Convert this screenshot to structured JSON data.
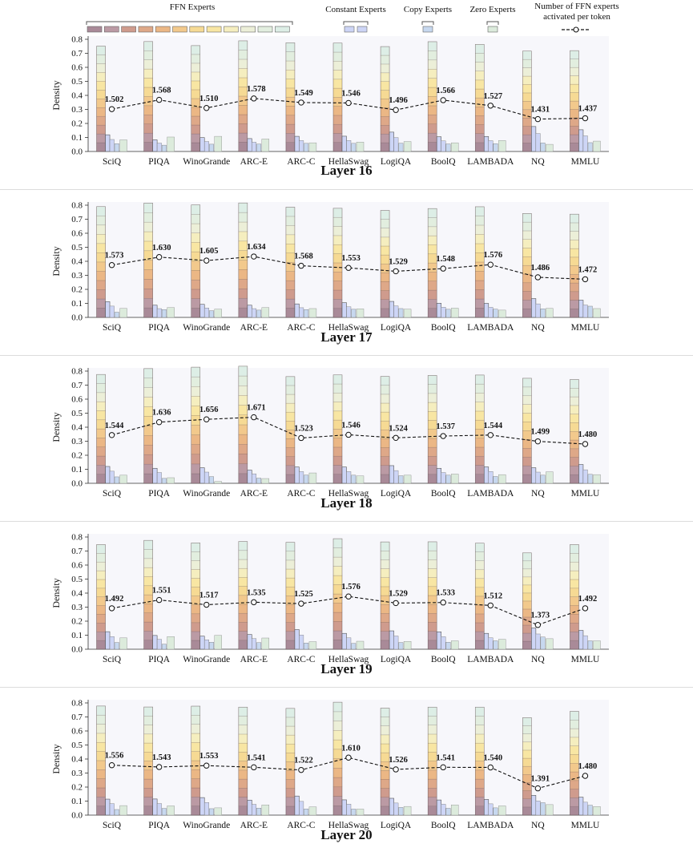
{
  "legend": {
    "ffn": "FFN Experts",
    "constant": "Constant Experts",
    "copy": "Copy Experts",
    "zero": "Zero Experts",
    "activated_line1": "Number of FFN experts",
    "activated_line2": "activated per token"
  },
  "colors": {
    "ffn_ramp": [
      "#a98a98",
      "#bb9aa4",
      "#cf9b8d",
      "#dea888",
      "#ebb785",
      "#f2c98c",
      "#f6da94",
      "#f8e6a3",
      "#f5eebf",
      "#ecefd8",
      "#e2eedf",
      "#ddeee6"
    ],
    "constant": "#cdd5f6",
    "copy": "#c7d8ef",
    "zero": "#dcebdc",
    "panel_bg": "#f7f7fb",
    "line": "#111111"
  },
  "chart_data": [
    {
      "type": "bar",
      "title": "Layer 16",
      "ylabel": "Density",
      "ylim": [
        0,
        0.8
      ],
      "yticks": [
        "0.0",
        "0.1",
        "0.2",
        "0.3",
        "0.4",
        "0.5",
        "0.6",
        "0.7",
        "0.8"
      ],
      "categories": [
        "SciQ",
        "PIQA",
        "WinoGrande",
        "ARC-E",
        "ARC-C",
        "HellaSwag",
        "LogiQA",
        "BoolQ",
        "LAMBADA",
        "NQ",
        "MMLU"
      ],
      "series": [
        {
          "name": "FFN Experts",
          "values": [
            0.751,
            0.784,
            0.755,
            0.789,
            0.775,
            0.773,
            0.748,
            0.783,
            0.764,
            0.716,
            0.719
          ]
        },
        {
          "name": "Constant Experts",
          "values": [
            0.119,
            0.083,
            0.099,
            0.092,
            0.108,
            0.109,
            0.138,
            0.105,
            0.107,
            0.178,
            0.155
          ]
        },
        {
          "name": "Copy Experts",
          "values": [
            0.056,
            0.045,
            0.052,
            0.053,
            0.058,
            0.058,
            0.059,
            0.054,
            0.056,
            0.061,
            0.063
          ]
        },
        {
          "name": "Zero Experts",
          "values": [
            0.083,
            0.103,
            0.108,
            0.089,
            0.062,
            0.067,
            0.071,
            0.062,
            0.078,
            0.051,
            0.074
          ]
        },
        {
          "name": "Number of FFN experts activated per token",
          "values": [
            1.502,
            1.568,
            1.51,
            1.578,
            1.549,
            1.546,
            1.496,
            1.566,
            1.527,
            1.431,
            1.437
          ]
        }
      ],
      "labels": [
        "1.502",
        "1.568",
        "1.510",
        "1.578",
        "1.549",
        "1.546",
        "1.496",
        "1.566",
        "1.527",
        "1.431",
        "1.437"
      ]
    },
    {
      "type": "bar",
      "title": "Layer 17",
      "ylabel": "Density",
      "ylim": [
        0,
        0.8
      ],
      "yticks": [
        "0.0",
        "0.1",
        "0.2",
        "0.3",
        "0.4",
        "0.5",
        "0.6",
        "0.7",
        "0.8"
      ],
      "categories": [
        "SciQ",
        "PIQA",
        "WinoGrande",
        "ARC-E",
        "ARC-C",
        "HellaSwag",
        "LogiQA",
        "BoolQ",
        "LAMBADA",
        "NQ",
        "MMLU"
      ],
      "series": [
        {
          "name": "FFN Experts",
          "values": [
            0.79,
            0.815,
            0.802,
            0.816,
            0.786,
            0.778,
            0.763,
            0.776,
            0.789,
            0.741,
            0.736
          ]
        },
        {
          "name": "Constant Experts",
          "values": [
            0.112,
            0.087,
            0.093,
            0.087,
            0.096,
            0.105,
            0.114,
            0.101,
            0.1,
            0.134,
            0.123
          ]
        },
        {
          "name": "Copy Experts",
          "values": [
            0.037,
            0.056,
            0.048,
            0.052,
            0.056,
            0.058,
            0.063,
            0.058,
            0.059,
            0.061,
            0.08
          ]
        },
        {
          "name": "Zero Experts",
          "values": [
            0.064,
            0.07,
            0.059,
            0.07,
            0.063,
            0.061,
            0.059,
            0.066,
            0.052,
            0.064,
            0.063
          ]
        },
        {
          "name": "Number of FFN experts activated per token",
          "values": [
            1.573,
            1.63,
            1.605,
            1.634,
            1.568,
            1.553,
            1.529,
            1.548,
            1.576,
            1.486,
            1.472
          ]
        }
      ],
      "labels": [
        "1.573",
        "1.630",
        "1.605",
        "1.634",
        "1.568",
        "1.553",
        "1.529",
        "1.548",
        "1.576",
        "1.486",
        "1.472"
      ]
    },
    {
      "type": "bar",
      "title": "Layer 18",
      "ylabel": "Density",
      "ylim": [
        0,
        0.8
      ],
      "yticks": [
        "0.0",
        "0.1",
        "0.2",
        "0.3",
        "0.4",
        "0.5",
        "0.6",
        "0.7",
        "0.8"
      ],
      "categories": [
        "SciQ",
        "PIQA",
        "WinoGrande",
        "ARC-E",
        "ARC-C",
        "HellaSwag",
        "LogiQA",
        "BoolQ",
        "LAMBADA",
        "NQ",
        "MMLU"
      ],
      "series": [
        {
          "name": "FFN Experts",
          "values": [
            0.776,
            0.818,
            0.828,
            0.835,
            0.761,
            0.773,
            0.762,
            0.769,
            0.772,
            0.749,
            0.74
          ]
        },
        {
          "name": "Constant Experts",
          "values": [
            0.12,
            0.107,
            0.111,
            0.094,
            0.116,
            0.116,
            0.126,
            0.107,
            0.117,
            0.111,
            0.134
          ]
        },
        {
          "name": "Copy Experts",
          "values": [
            0.046,
            0.035,
            0.048,
            0.037,
            0.059,
            0.058,
            0.054,
            0.058,
            0.049,
            0.058,
            0.064
          ]
        },
        {
          "name": "Zero Experts",
          "values": [
            0.058,
            0.04,
            0.013,
            0.034,
            0.074,
            0.053,
            0.058,
            0.066,
            0.062,
            0.082,
            0.062
          ]
        },
        {
          "name": "Number of FFN experts activated per token",
          "values": [
            1.544,
            1.636,
            1.656,
            1.671,
            1.523,
            1.546,
            1.524,
            1.537,
            1.544,
            1.499,
            1.48
          ]
        }
      ],
      "labels": [
        "1.544",
        "1.636",
        "1.656",
        "1.671",
        "1.523",
        "1.546",
        "1.524",
        "1.537",
        "1.544",
        "1.499",
        "1.480"
      ]
    },
    {
      "type": "bar",
      "title": "Layer 19",
      "ylabel": "Density",
      "ylim": [
        0,
        0.8
      ],
      "yticks": [
        "0.0",
        "0.1",
        "0.2",
        "0.3",
        "0.4",
        "0.5",
        "0.6",
        "0.7",
        "0.8"
      ],
      "categories": [
        "SciQ",
        "PIQA",
        "WinoGrande",
        "ARC-E",
        "ARC-C",
        "HellaSwag",
        "LogiQA",
        "BoolQ",
        "LAMBADA",
        "NQ",
        "MMLU"
      ],
      "series": [
        {
          "name": "FFN Experts",
          "values": [
            0.746,
            0.776,
            0.758,
            0.768,
            0.762,
            0.788,
            0.765,
            0.766,
            0.756,
            0.687,
            0.746
          ]
        },
        {
          "name": "Constant Experts",
          "values": [
            0.125,
            0.098,
            0.093,
            0.105,
            0.14,
            0.113,
            0.131,
            0.124,
            0.113,
            0.151,
            0.134
          ]
        },
        {
          "name": "Copy Experts",
          "values": [
            0.048,
            0.036,
            0.05,
            0.047,
            0.044,
            0.042,
            0.048,
            0.05,
            0.06,
            0.087,
            0.06
          ]
        },
        {
          "name": "Zero Experts",
          "values": [
            0.081,
            0.09,
            0.099,
            0.08,
            0.054,
            0.057,
            0.056,
            0.06,
            0.071,
            0.075,
            0.06
          ]
        },
        {
          "name": "Number of FFN experts activated per token",
          "values": [
            1.492,
            1.551,
            1.517,
            1.535,
            1.525,
            1.576,
            1.529,
            1.533,
            1.512,
            1.373,
            1.492
          ]
        }
      ],
      "labels": [
        "1.492",
        "1.551",
        "1.517",
        "1.535",
        "1.525",
        "1.576",
        "1.529",
        "1.533",
        "1.512",
        "1.373",
        "1.492"
      ]
    },
    {
      "type": "bar",
      "title": "Layer 20",
      "ylabel": "Density",
      "ylim": [
        0,
        0.8
      ],
      "yticks": [
        "0.0",
        "0.1",
        "0.2",
        "0.3",
        "0.4",
        "0.5",
        "0.6",
        "0.7",
        "0.8"
      ],
      "categories": [
        "SciQ",
        "PIQA",
        "WinoGrande",
        "ARC-E",
        "ARC-C",
        "HellaSwag",
        "LogiQA",
        "BoolQ",
        "LAMBADA",
        "NQ",
        "MMLU"
      ],
      "series": [
        {
          "name": "FFN Experts",
          "values": [
            0.778,
            0.771,
            0.777,
            0.77,
            0.761,
            0.805,
            0.763,
            0.77,
            0.77,
            0.695,
            0.74
          ]
        },
        {
          "name": "Constant Experts",
          "values": [
            0.114,
            0.115,
            0.125,
            0.107,
            0.136,
            0.109,
            0.12,
            0.108,
            0.112,
            0.141,
            0.128
          ]
        },
        {
          "name": "Copy Experts",
          "values": [
            0.04,
            0.048,
            0.046,
            0.05,
            0.044,
            0.043,
            0.055,
            0.049,
            0.052,
            0.089,
            0.071
          ]
        },
        {
          "name": "Zero Experts",
          "values": [
            0.068,
            0.066,
            0.052,
            0.073,
            0.059,
            0.043,
            0.062,
            0.073,
            0.066,
            0.075,
            0.061
          ]
        },
        {
          "name": "Number of FFN experts activated per token",
          "values": [
            1.556,
            1.543,
            1.553,
            1.541,
            1.522,
            1.61,
            1.526,
            1.541,
            1.54,
            1.391,
            1.48
          ]
        }
      ],
      "labels": [
        "1.556",
        "1.543",
        "1.553",
        "1.541",
        "1.522",
        "1.610",
        "1.526",
        "1.541",
        "1.540",
        "1.391",
        "1.480"
      ]
    }
  ]
}
